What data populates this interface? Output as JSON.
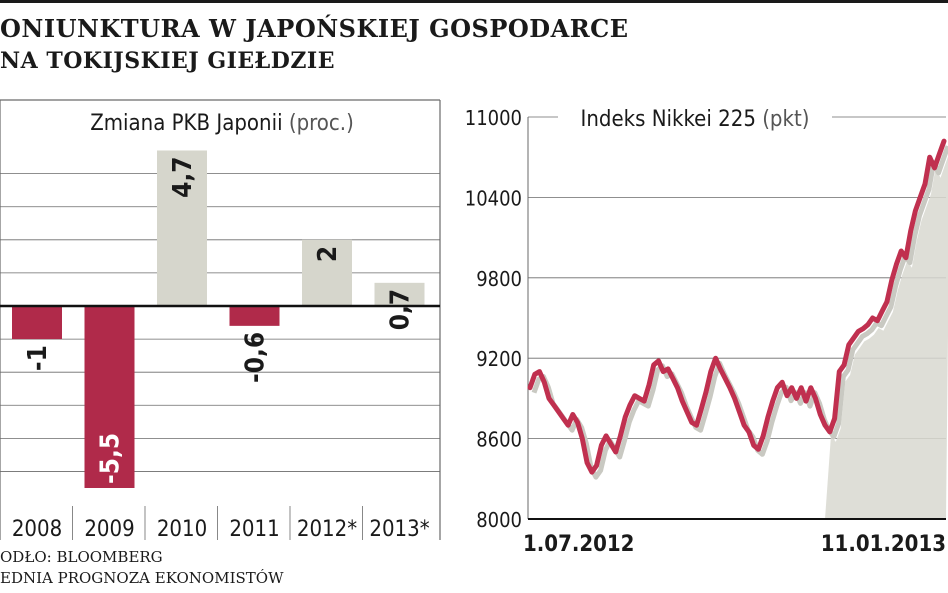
{
  "page": {
    "title_line1": "ONIUNKTURA W JAPOŃSKIEJ GOSPODARCE",
    "title_line2": "NA TOKIJSKIEJ GIEŁDZIE",
    "source": "ODŁO: BLOOMBERG",
    "note": "EDNIA PROGNOZA EKONOMISTÓW"
  },
  "colors": {
    "negative_bar": "#b02a4a",
    "positive_bar": "#d6d6cc",
    "line": "#c0304f",
    "area_fill": "#d8d8d0",
    "grid": "#6a6a6a",
    "text": "#1a1a1a"
  },
  "chart_data": [
    {
      "type": "bar",
      "title": "Zmiana PKB Japonii",
      "unit": "(proc.)",
      "categories": [
        "2008",
        "2009",
        "2010",
        "2011",
        "2012*",
        "2013*"
      ],
      "values": [
        -1,
        -5.5,
        4.7,
        -0.6,
        2,
        0.7
      ],
      "value_labels": [
        "-1",
        "-5,5",
        "4,7",
        "-0,6",
        "2",
        "0,7"
      ],
      "ylim": [
        -5.5,
        4.7
      ],
      "grid": true
    },
    {
      "type": "area",
      "title": "Indeks Nikkei 225",
      "unit": "(pkt)",
      "x_labels": [
        "1.07.2012",
        "11.01.2013"
      ],
      "yticks": [
        11000,
        10400,
        9800,
        9200,
        8600,
        8000
      ],
      "ylim": [
        8000,
        11000
      ],
      "grid": true,
      "series": [
        {
          "values": [
            8980,
            9080,
            9100,
            9020,
            8900,
            8850,
            8800,
            8750,
            8700,
            8780,
            8720,
            8600,
            8420,
            8350,
            8400,
            8550,
            8620,
            8560,
            8500,
            8620,
            8760,
            8850,
            8920,
            8900,
            8880,
            9000,
            9150,
            9180,
            9100,
            9120,
            9050,
            8980,
            8880,
            8800,
            8720,
            8700,
            8820,
            8950,
            9100,
            9200,
            9120,
            9050,
            8980,
            8900,
            8800,
            8700,
            8650,
            8550,
            8520,
            8620,
            8760,
            8880,
            8980,
            9020,
            8920,
            8980,
            8900,
            8980,
            8880,
            8980,
            8900,
            8780,
            8700,
            8650,
            8750,
            9100,
            9150,
            9300,
            9350,
            9400,
            9420,
            9450,
            9500,
            9480,
            9550,
            9620,
            9780,
            9900,
            10000,
            9950,
            10150,
            10300,
            10400,
            10500,
            10700,
            10620,
            10720,
            10820
          ]
        }
      ]
    }
  ]
}
